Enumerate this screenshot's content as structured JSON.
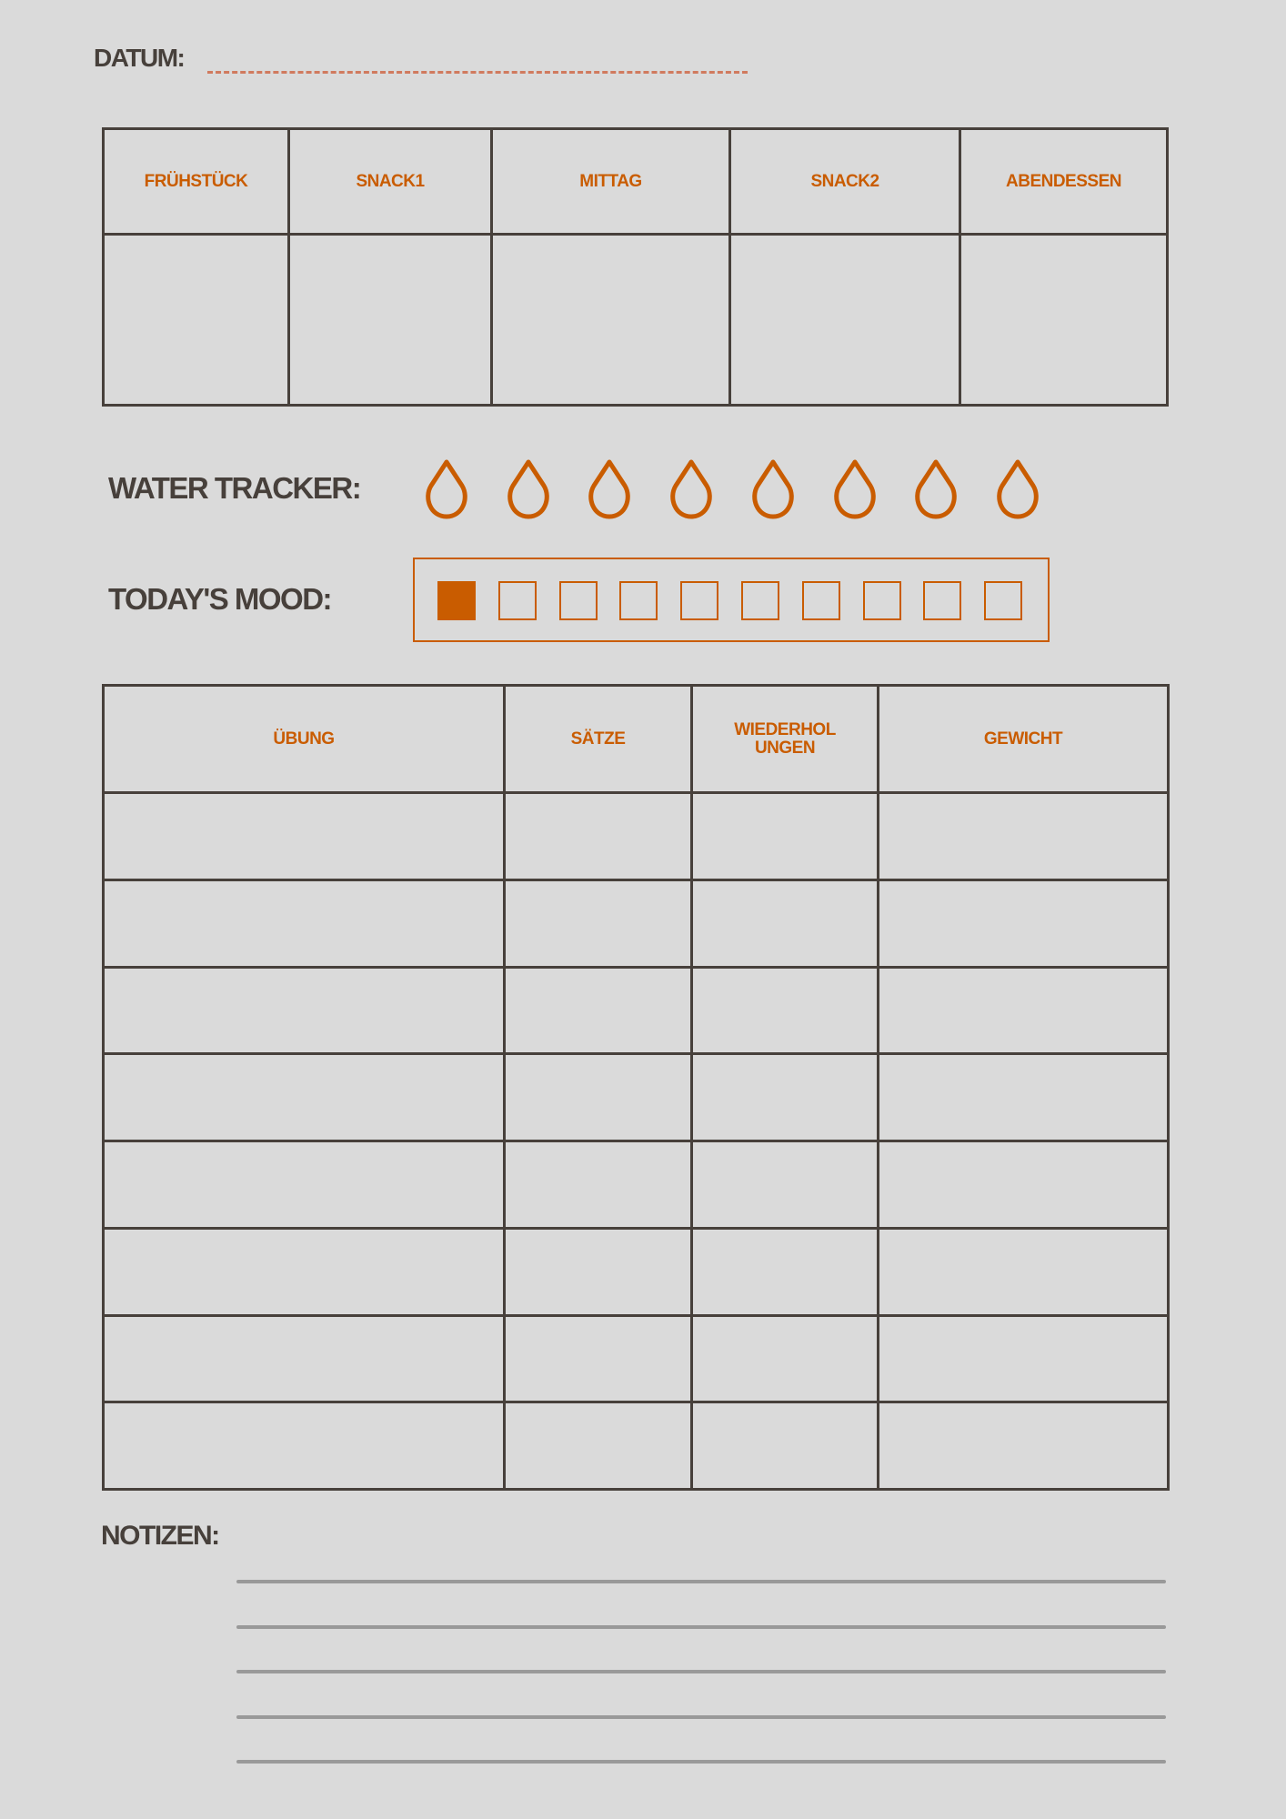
{
  "date": {
    "label": "DATUM:"
  },
  "meals": {
    "headers": [
      "FRÜHSTÜCK",
      "SNACK1",
      "MITTAG",
      "SNACK2",
      "ABENDESSEN"
    ]
  },
  "water": {
    "label": "WATER TRACKER:",
    "icon": "water-drop-icon",
    "count": 8,
    "filled": 0
  },
  "mood": {
    "label": "TODAY'S MOOD:",
    "scale_max": 10,
    "value": 1
  },
  "exercise": {
    "headers": [
      "ÜBUNG",
      "SÄTZE",
      "WIEDERHOL UNGEN",
      "GEWICHT"
    ],
    "row_count": 8
  },
  "notes": {
    "label": "NOTIZEN:",
    "line_count": 5
  },
  "colors": {
    "accent": "#c95c00",
    "text": "#47403b",
    "background": "#dadada",
    "date_line": "#d07a5e",
    "note_lines": "#999999"
  }
}
